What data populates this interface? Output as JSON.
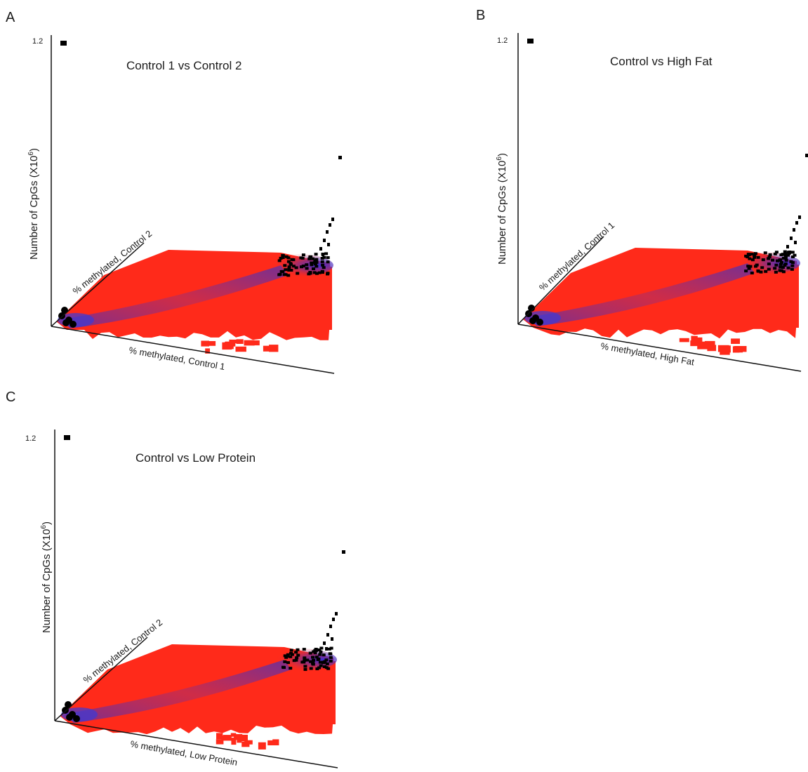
{
  "chart_data": [
    {
      "type": "scatter",
      "panel": "A",
      "title": "Control 1 vs Control 2",
      "xlabel": "% methylated, Control 1",
      "ylabel": "% methylated, Control 2",
      "zlabel": "Number of CpGs (X10",
      "zlabel_exp": "6",
      "zlabel_close": ")",
      "ztick": "1.2",
      "colors": {
        "low": "#ff2a1a",
        "mid": "#3a3ad8",
        "high": "#000000"
      }
    },
    {
      "type": "scatter",
      "panel": "B",
      "title": "Control vs High Fat",
      "xlabel": "% methylated, High Fat",
      "ylabel": "% methylated, Control 1",
      "zlabel": "Number of CpGs (X10",
      "zlabel_exp": "6",
      "zlabel_close": ")",
      "ztick": "1.2",
      "colors": {
        "low": "#ff2a1a",
        "mid": "#3a3ad8",
        "high": "#000000"
      }
    },
    {
      "type": "scatter",
      "panel": "C",
      "title": "Control vs Low Protein",
      "xlabel": "% methylated, Low Protein",
      "ylabel": "% methylated, Control 2",
      "zlabel": "Number of CpGs (X10",
      "zlabel_exp": "6",
      "zlabel_close": ")",
      "ztick": "1.2",
      "colors": {
        "low": "#ff2a1a",
        "mid": "#3a3ad8",
        "high": "#000000"
      }
    }
  ]
}
